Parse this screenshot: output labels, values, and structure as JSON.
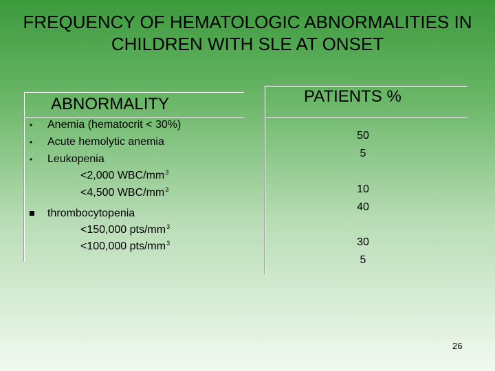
{
  "slide": {
    "title": "FREQUENCY OF HEMATOLOGIC ABNORMALITIES IN CHILDREN WITH SLE AT ONSET",
    "page_number": "26"
  },
  "headers": {
    "abnormality": "ABNORMALITY",
    "patients": "PATIENTS %"
  },
  "abnormalities": {
    "anemia": "Anemia (hematocrit < 30%)",
    "hemolytic": "Acute hemolytic anemia",
    "leukopenia": "Leukopenia",
    "leuk_sub1": "<2,000 WBC/mm",
    "leuk_sub2": "<4,500 WBC/mm",
    "thrombocytopenia": "thrombocytopenia",
    "thromb_sub1": "<150,000 pts/mm",
    "thromb_sub2": "<100,000 pts/mm",
    "superscript": "3"
  },
  "values": {
    "anemia": "50",
    "hemolytic": "5",
    "leuk_sub1": "10",
    "leuk_sub2": "40",
    "thromb_sub1": "30",
    "thromb_sub2": "5"
  }
}
